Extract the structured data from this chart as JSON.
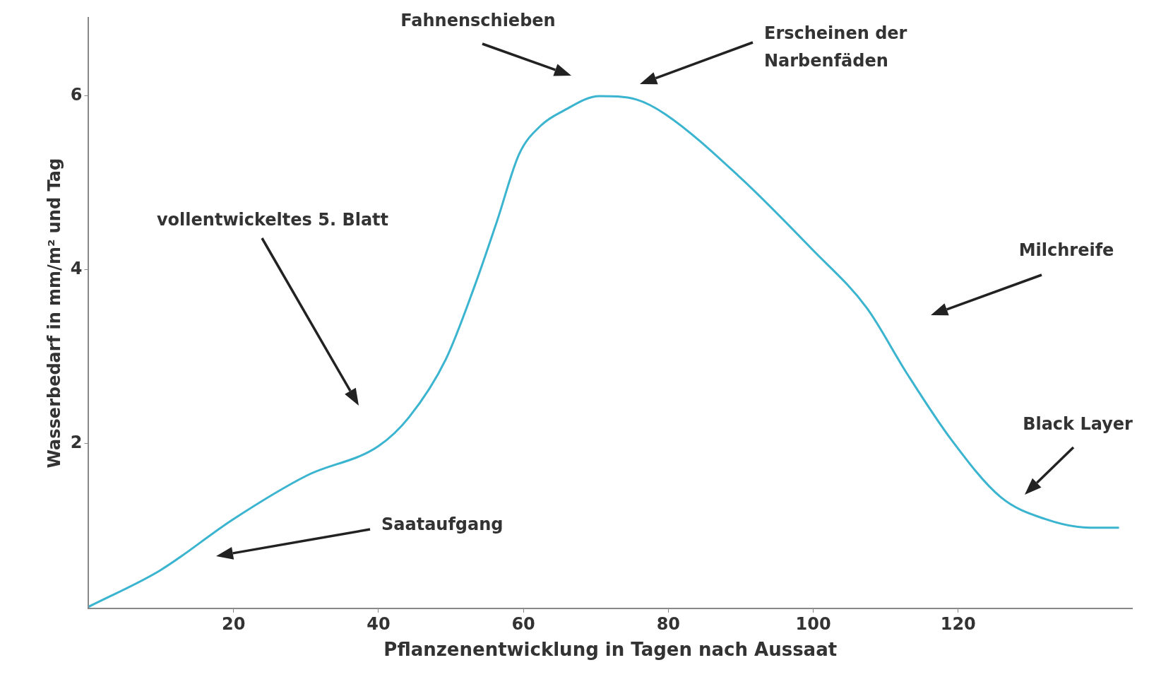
{
  "chart_data": {
    "type": "line",
    "xlabel": "Pflanzenentwicklung in Tagen nach Aussaat",
    "ylabel": "Wasserbedarf in mm/m² und Tag",
    "xlim": [
      0,
      144
    ],
    "ylim": [
      0.1,
      6.9
    ],
    "xticks": [
      20,
      40,
      60,
      80,
      100,
      120
    ],
    "yticks": [
      2,
      4,
      6
    ],
    "grid": false,
    "legend": false,
    "marker": "none",
    "line_style": "solid",
    "series": [
      {
        "color": "#3bb4d0",
        "x": [
          0,
          9.9,
          20,
          30.1,
          40,
          44.2,
          49.3,
          53.3,
          56.4,
          59.4,
          62.4,
          65.5,
          70.5,
          75.6,
          79.6,
          89.7,
          99.8,
          107.4,
          112.9,
          119,
          125.9,
          132,
          138.2,
          142.2
        ],
        "values": [
          0.12,
          0.54,
          1.13,
          1.63,
          1.97,
          2.3,
          2.97,
          3.82,
          4.57,
          5.33,
          5.66,
          5.83,
          6.0,
          5.96,
          5.79,
          5.08,
          4.24,
          3.56,
          2.81,
          2.05,
          1.38,
          1.13,
          1.03,
          1.03
        ]
      }
    ],
    "annotations": [
      "Saataufgang",
      "vollentwickeltes 5. Blatt",
      "Fahnenschieben",
      "Erscheinen der\nNarbenfäden",
      "Milchreife",
      "Black Layer"
    ]
  }
}
